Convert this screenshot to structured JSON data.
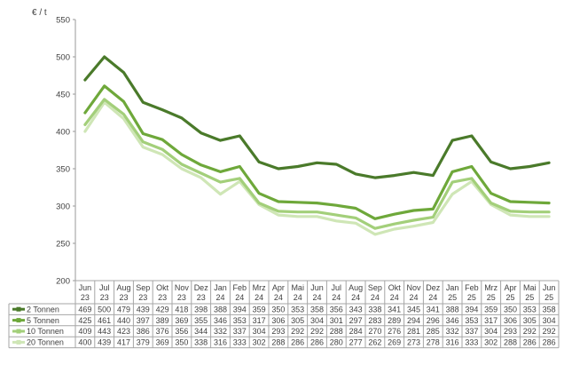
{
  "chart_data": {
    "type": "line",
    "ylabel": "€ / t",
    "ylim": [
      200,
      550
    ],
    "yticks": [
      200,
      250,
      300,
      350,
      400,
      450,
      500,
      550
    ],
    "grid": false,
    "legend": "data-table-left",
    "categories": [
      [
        "Jun",
        "23"
      ],
      [
        "Jul",
        "23"
      ],
      [
        "Aug",
        "23"
      ],
      [
        "Sep",
        "23"
      ],
      [
        "Okt",
        "23"
      ],
      [
        "Nov",
        "23"
      ],
      [
        "Dez",
        "23"
      ],
      [
        "Jan",
        "24"
      ],
      [
        "Feb",
        "24"
      ],
      [
        "Mrz",
        "24"
      ],
      [
        "Apr",
        "24"
      ],
      [
        "Mai",
        "24"
      ],
      [
        "Jun",
        "24"
      ],
      [
        "Jul",
        "24"
      ],
      [
        "Aug",
        "24"
      ],
      [
        "Sep",
        "24"
      ],
      [
        "Okt",
        "24"
      ],
      [
        "Nov",
        "24"
      ],
      [
        "Dez",
        "24"
      ],
      [
        "Jan",
        "25"
      ],
      [
        "Feb",
        "25"
      ],
      [
        "Mrz",
        "25"
      ],
      [
        "Apr",
        "25"
      ],
      [
        "Mai",
        "25"
      ],
      [
        "Jun",
        "25"
      ]
    ],
    "series": [
      {
        "name": "2 Tonnen",
        "color": "#4a7a2a",
        "values": [
          469,
          500,
          479,
          439,
          429,
          418,
          398,
          388,
          394,
          359,
          350,
          353,
          358,
          356,
          343,
          338,
          341,
          345,
          341,
          388,
          394,
          359,
          350,
          353,
          358
        ]
      },
      {
        "name": "5 Tonnen",
        "color": "#6ea83a",
        "values": [
          425,
          461,
          440,
          397,
          389,
          369,
          355,
          346,
          353,
          317,
          306,
          305,
          304,
          301,
          297,
          283,
          289,
          294,
          296,
          346,
          353,
          317,
          306,
          305,
          304
        ]
      },
      {
        "name": "10 Tonnen",
        "color": "#a3cf7a",
        "values": [
          409,
          443,
          423,
          386,
          376,
          356,
          344,
          332,
          337,
          304,
          293,
          292,
          292,
          288,
          284,
          270,
          276,
          281,
          285,
          332,
          337,
          304,
          293,
          292,
          292
        ]
      },
      {
        "name": "20 Tonnen",
        "color": "#cfe6b6",
        "values": [
          400,
          439,
          417,
          379,
          369,
          350,
          338,
          316,
          333,
          302,
          288,
          286,
          286,
          280,
          277,
          262,
          269,
          273,
          278,
          316,
          333,
          302,
          288,
          286,
          286
        ]
      }
    ]
  }
}
